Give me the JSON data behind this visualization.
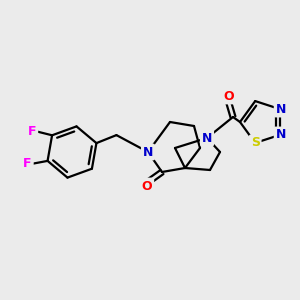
{
  "bg_color": "#ebebeb",
  "bond_color": "#000000",
  "bond_width": 1.6,
  "atom_colors": {
    "N": "#0000cc",
    "O": "#ff0000",
    "F": "#ff00ff",
    "S": "#cccc00",
    "C": "#000000"
  },
  "font_size_atom": 9,
  "fig_size": [
    3.0,
    3.0
  ],
  "dpi": 100
}
